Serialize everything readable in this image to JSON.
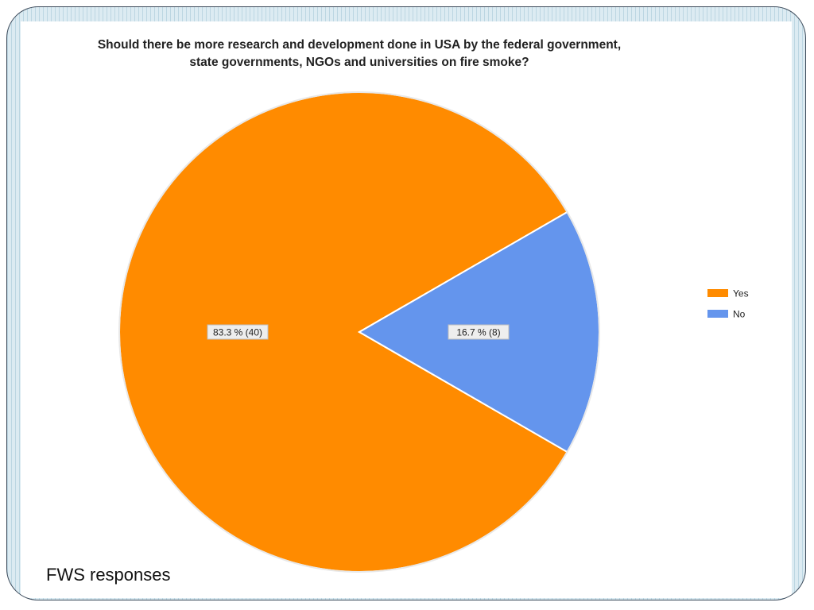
{
  "caption": "FWS responses",
  "colors": {
    "yes": "#ff8b00",
    "no": "#6495ed",
    "label_bg": "#eeeeee"
  },
  "chart_data": {
    "type": "pie",
    "title": "Should there be more research and development done in USA by the federal government, state governments, NGOs and universities on fire smoke?",
    "slices": [
      {
        "label": "Yes",
        "count": 40,
        "percent": 83.3,
        "data_label": "83.3 % (40)"
      },
      {
        "label": "No",
        "count": 8,
        "percent": 16.7,
        "data_label": "16.7 % (8)"
      }
    ],
    "legend": {
      "placement": "right",
      "entries": [
        "Yes",
        "No"
      ]
    }
  }
}
